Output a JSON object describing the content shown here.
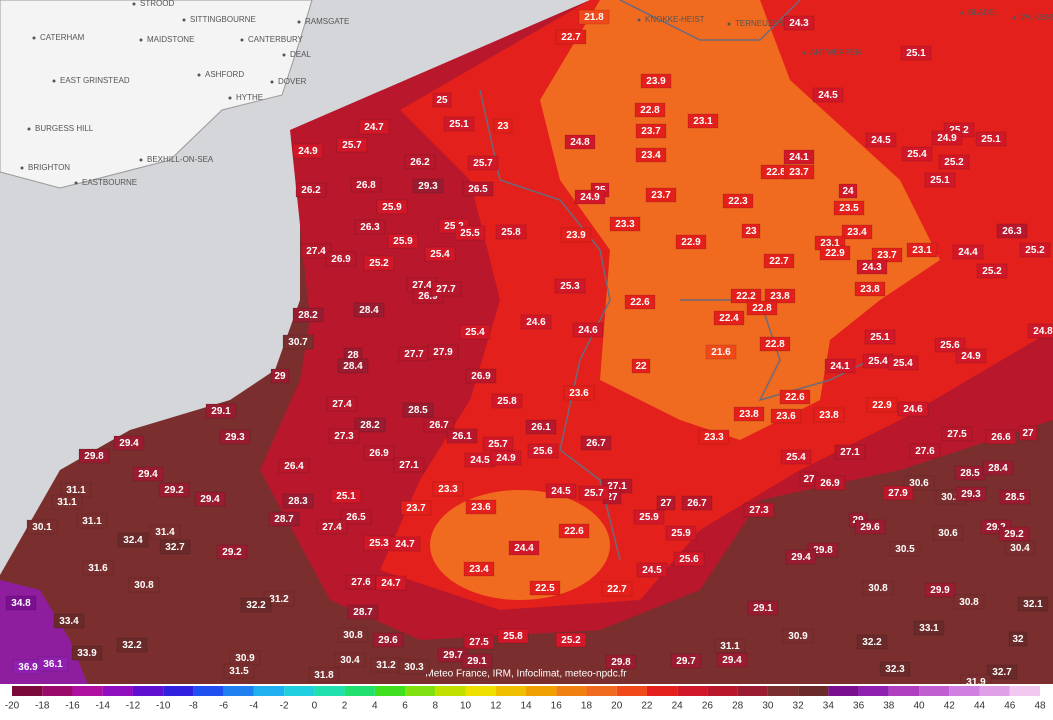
{
  "map": {
    "places": [
      "STROOD",
      "SITTINGBOURNE",
      "RAMSGATE",
      "CATERHAM",
      "MAIDSTONE",
      "CANTERBURY",
      "DEAL",
      "EAST GRINSTEAD",
      "ASHFORD",
      "DOVER",
      "HYTHE",
      "BURGESS HILL",
      "BEXHILL-ON-SEA",
      "BRIGHTON",
      "EASTBOURNE",
      "KNOKKE-HEIST",
      "TERNEUZEN",
      "ANTWERPEN",
      "BLADEL",
      "VALKENSWAARD"
    ],
    "stations": [
      21.8,
      22.7,
      24.3,
      25.1,
      24.5,
      25,
      23.9,
      22.8,
      23.1,
      24.7,
      25.1,
      23,
      23.7,
      24.5,
      25.2,
      24.9,
      25.1,
      24.9,
      25.7,
      24.8,
      23.4,
      25.4,
      24.1,
      25.2,
      26.2,
      25.7,
      22.8,
      23.7,
      25.1,
      26.2,
      26.8,
      29.3,
      26.5,
      25,
      24.9,
      23.7,
      22.3,
      24,
      23.5,
      25.9,
      26.3,
      25.2,
      25.5,
      25.8,
      23.9,
      23.3,
      23,
      23.4,
      25.9,
      22.9,
      23.1,
      22.9,
      23.1,
      24.4,
      26.3,
      25.2,
      27.4,
      26.9,
      25.2,
      25.4,
      22.7,
      23.7,
      24.3,
      25.2,
      25.3,
      23.8,
      27.4,
      26.9,
      27.7,
      22.6,
      22.2,
      23.8,
      22.8,
      22.4,
      28.2,
      28.4,
      24.6,
      24.6,
      25.4,
      25.1,
      25.6,
      24.8,
      30.7,
      22.8,
      27.7,
      27.9,
      28,
      28.4,
      21.6,
      24.9,
      25.4,
      25.4,
      24.1,
      22,
      29,
      26.9,
      23.6,
      25.8,
      22.6,
      27.4,
      28.5,
      29.1,
      22.9,
      24.6,
      23.8,
      23.6,
      23.8,
      28.2,
      26.7,
      26.1,
      27.3,
      29.3,
      26.1,
      23.3,
      27.5,
      26.6,
      27,
      25.7,
      26.7,
      29.4,
      29.8,
      26.9,
      24.5,
      24.9,
      25.6,
      25.4,
      27.1,
      27.6,
      26.4,
      27.1,
      29.4,
      28.5,
      28.4,
      27.1,
      27,
      24.5,
      25.7,
      23.3,
      29.2,
      27,
      26.9,
      30.6,
      31.1,
      31.1,
      27.9,
      30.2,
      29.3,
      28.5,
      29.4,
      25.1,
      28.3,
      27,
      26.7,
      23.7,
      23.6,
      27.3,
      31.1,
      30.1,
      26.5,
      25.9,
      28.7,
      27.4,
      29,
      29.6,
      22.6,
      25.9,
      29.2,
      32.4,
      31.4,
      30.6,
      29.2,
      32.7,
      24.4,
      29.2,
      25.3,
      24.7,
      29.8,
      30.5,
      30.4,
      29.4,
      25.6,
      23.4,
      31.6,
      24.5,
      27.6,
      24.7,
      30.8,
      22.5,
      22.7,
      30.8,
      29.9,
      34.8,
      31.2,
      32.2,
      30.8,
      32.1,
      28.7,
      29.1,
      33.4,
      33.1,
      30.8,
      29.6,
      27.5,
      25.8,
      25.2,
      30.9,
      32,
      32.2,
      31.1,
      32.2,
      33.9,
      29.7,
      29.1,
      30.9,
      30.4,
      31.2,
      30.3,
      29.8,
      29.7,
      29.4,
      36.9,
      36.1,
      31.5,
      31.8,
      32.3,
      32.7,
      31.9
    ],
    "attribution": "Meteo France, IRM, Infoclimat, meteo-npdc.fr",
    "legend": {
      "ticks": [
        -20,
        -18,
        -16,
        -14,
        -12,
        -10,
        -8,
        -6,
        -4,
        -2,
        0,
        2,
        4,
        6,
        8,
        10,
        12,
        14,
        16,
        18,
        20,
        22,
        24,
        26,
        28,
        30,
        32,
        34,
        36,
        38,
        40,
        42,
        44,
        46,
        48
      ]
    }
  }
}
